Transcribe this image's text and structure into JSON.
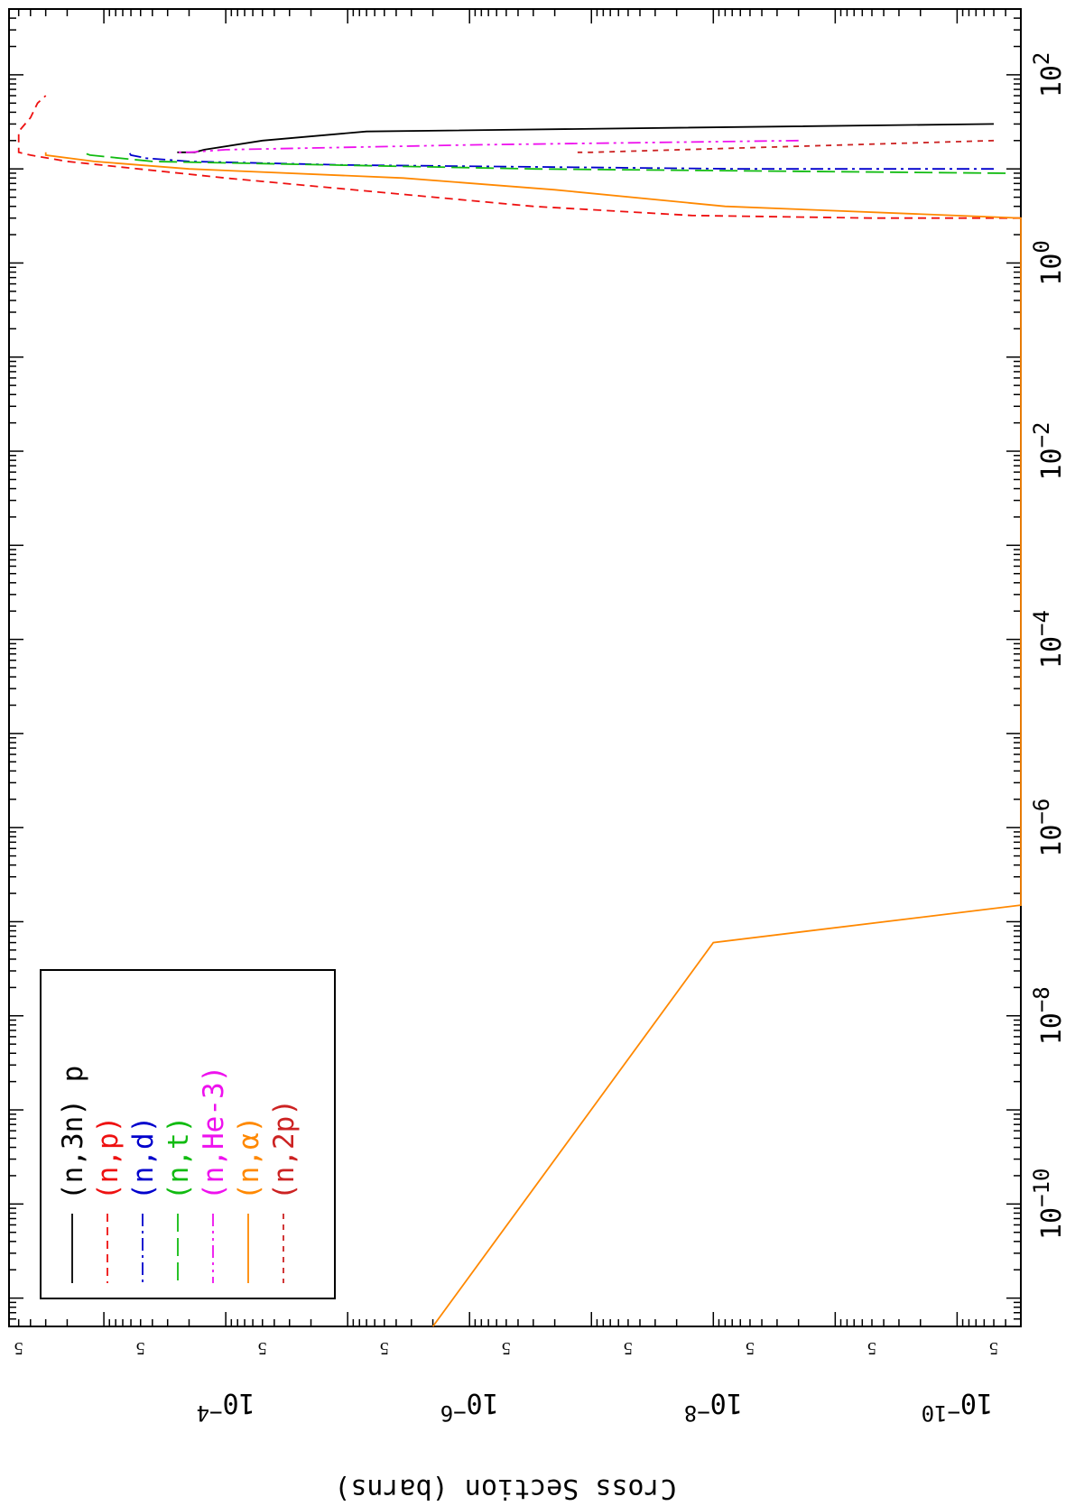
{
  "chart_data": {
    "type": "line",
    "xscale": "log",
    "yscale": "log",
    "xlim": [
      5e-12,
      500
    ],
    "ylim": [
      3e-11,
      0.006
    ],
    "xlabel": "",
    "ylabel": "Cross Section (barns)",
    "x_ticks": [
      {
        "value": 1e-10,
        "base": "10",
        "exp": "−10"
      },
      {
        "value": 1e-08,
        "base": "10",
        "exp": "−8"
      },
      {
        "value": 1e-06,
        "base": "10",
        "exp": "−6"
      },
      {
        "value": 0.0001,
        "base": "10",
        "exp": "−4"
      },
      {
        "value": 0.01,
        "base": "10",
        "exp": "−2"
      },
      {
        "value": 1,
        "base": "10",
        "exp": "0"
      },
      {
        "value": 100,
        "base": "10",
        "exp": "2"
      }
    ],
    "y_ticks": [
      {
        "value": 1e-10,
        "base": "10",
        "exp": "−10"
      },
      {
        "value": 1e-08,
        "base": "10",
        "exp": "−8"
      },
      {
        "value": 1e-06,
        "base": "10",
        "exp": "−6"
      },
      {
        "value": 0.0001,
        "base": "10",
        "exp": "−4"
      }
    ],
    "y_five_label": "5",
    "y_five_ticks": [
      5e-11,
      5e-10,
      5e-09,
      5e-08,
      5e-07,
      5e-06,
      5e-05,
      0.0005,
      0.005
    ],
    "legend_position": "top-left",
    "series": [
      {
        "name": "(n,3n) p",
        "color": "#000000",
        "dash": "",
        "points": [
          [
            30,
            5e-11
          ],
          [
            25,
            7e-06
          ],
          [
            20,
            5e-05
          ],
          [
            16,
            0.00015
          ],
          [
            15,
            0.00018
          ],
          [
            15,
            0.00025
          ]
        ]
      },
      {
        "name": "(n,p)",
        "color": "#ee1111",
        "dash": "9,6",
        "points": [
          [
            3,
            3e-11
          ],
          [
            3,
            5e-10
          ],
          [
            3.2,
            1.5e-08
          ],
          [
            4,
            3e-07
          ],
          [
            8,
            0.0001
          ],
          [
            12,
            0.002
          ],
          [
            14,
            0.004
          ],
          [
            15,
            0.005
          ],
          [
            25,
            0.005
          ],
          [
            35,
            0.004
          ],
          [
            50,
            0.0035
          ],
          [
            60,
            0.003
          ]
        ]
      },
      {
        "name": "(n,d)",
        "color": "#0000cc",
        "dash": "14,5,3,5",
        "points": [
          [
            10,
            5e-11
          ],
          [
            10,
            6e-09
          ],
          [
            11,
            1e-05
          ],
          [
            12,
            0.0002
          ],
          [
            13,
            0.00045
          ],
          [
            14,
            0.0006
          ],
          [
            15,
            0.00062
          ]
        ]
      },
      {
        "name": "(n,t)",
        "color": "#11bb11",
        "dash": "20,7",
        "points": [
          [
            9,
            4e-11
          ],
          [
            10,
            3e-07
          ],
          [
            12,
            0.0004
          ],
          [
            14,
            0.0013
          ],
          [
            15,
            0.0015
          ]
        ]
      },
      {
        "name": "(n,He-3)",
        "color": "#ee11ee",
        "dash": "14,5,3,5,3,5",
        "points": [
          [
            20,
            2e-09
          ],
          [
            18,
            1e-06
          ],
          [
            16,
            0.0001
          ],
          [
            15,
            0.0002
          ],
          [
            15,
            0.00025
          ]
        ]
      },
      {
        "name": "(n,α)",
        "color": "#ff8800",
        "dash": "",
        "points": [
          [
            5e-12,
            2e-06
          ],
          [
            6e-08,
            1e-08
          ],
          [
            1.5e-07,
            3e-11
          ],
          [
            3,
            3e-11
          ],
          [
            4,
            8e-09
          ],
          [
            6,
            2e-07
          ],
          [
            8,
            3.5e-06
          ],
          [
            10,
            0.0002
          ],
          [
            12,
            0.0012
          ],
          [
            14,
            0.003
          ],
          [
            15,
            0.003
          ]
        ]
      },
      {
        "name": "(n,2p)",
        "color": "#cc2222",
        "dash": "6,6",
        "points": [
          [
            20,
            5e-11
          ],
          [
            15,
            1e-07
          ],
          [
            15,
            1.3e-07
          ]
        ]
      }
    ]
  }
}
